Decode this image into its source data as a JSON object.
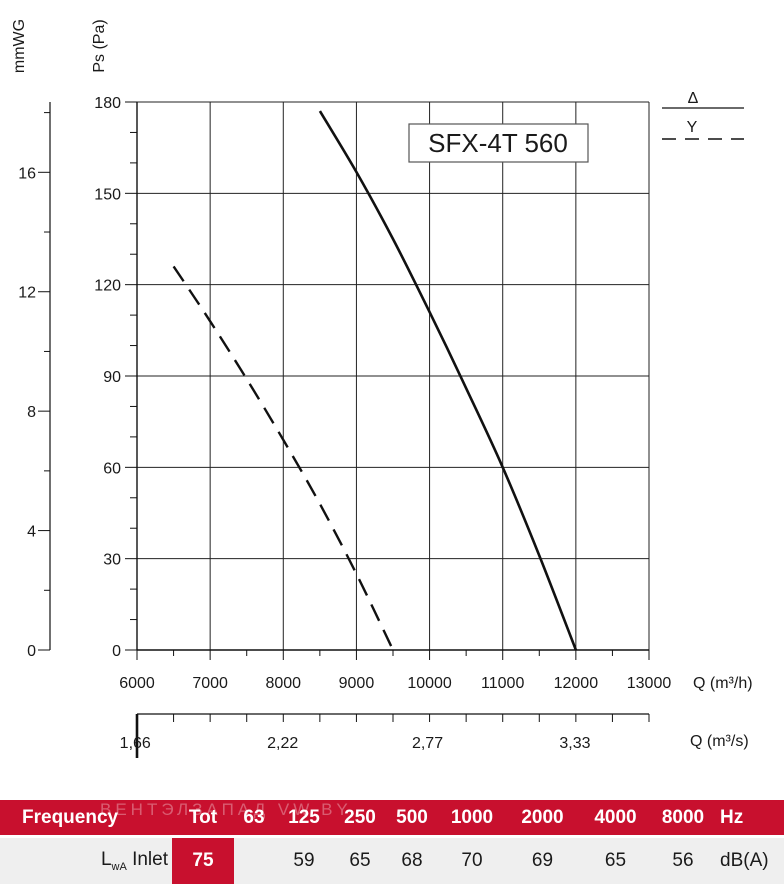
{
  "chart_data": {
    "type": "line",
    "model": "SFX-4T 560",
    "ylabel": "Ps (Pa)",
    "ylabel_secondary": "mmWG",
    "xlabel": "Q (m³/h)",
    "xlabel_secondary": "Q (m³/s)",
    "xlim": [
      6000,
      13000
    ],
    "ylim": [
      0,
      180
    ],
    "x_ticks": [
      "6000",
      "7000",
      "8000",
      "9000",
      "10000",
      "11000",
      "12000",
      "13000"
    ],
    "x_tick_values": [
      6000,
      7000,
      8000,
      9000,
      10000,
      11000,
      12000,
      13000
    ],
    "y_ticks": [
      "0",
      "30",
      "60",
      "90",
      "120",
      "150",
      "180"
    ],
    "y_tick_values": [
      0,
      30,
      60,
      90,
      120,
      150,
      180
    ],
    "y2_ticks": [
      "0",
      "4",
      "8",
      "12",
      "16"
    ],
    "y2_tick_values": [
      0,
      4,
      8,
      12,
      16
    ],
    "x2_ticks": [
      "1,66",
      "2,22",
      "2,77",
      "3,33"
    ],
    "x2_tick_values": [
      5976,
      7992,
      9972,
      11988
    ],
    "grid": true,
    "legend_position": "top-right",
    "series": [
      {
        "name": "Δ",
        "style": "solid",
        "color": "#111111",
        "x": [
          8500,
          9000,
          9500,
          10000,
          10500,
          11000,
          11500,
          12000
        ],
        "y": [
          177,
          157,
          135,
          111,
          86,
          60,
          31,
          0
        ]
      },
      {
        "name": "Y",
        "style": "dashed",
        "color": "#111111",
        "x": [
          6500,
          7000,
          7500,
          8000,
          8500,
          9000,
          9500
        ],
        "y": [
          126,
          108,
          89,
          69,
          48,
          25,
          0
        ]
      }
    ]
  },
  "sound_table": {
    "header": {
      "label": "Frequency",
      "tot": "Tot",
      "bands": [
        "63",
        "125",
        "250",
        "500",
        "1000",
        "2000",
        "4000",
        "8000"
      ],
      "unit": "Hz"
    },
    "row": {
      "label_main": "L",
      "label_sub": "wA",
      "label_inlet": "Inlet",
      "tot": "75",
      "values": [
        "",
        "59",
        "65",
        "68",
        "70",
        "69",
        "65",
        "56"
      ],
      "unit": "dB(A)"
    },
    "watermark": "ВЕНТЭЛЗАПАД  VW.BY"
  },
  "colors": {
    "accent": "#c8102e",
    "row_bg": "#efefef",
    "line": "#111111"
  }
}
